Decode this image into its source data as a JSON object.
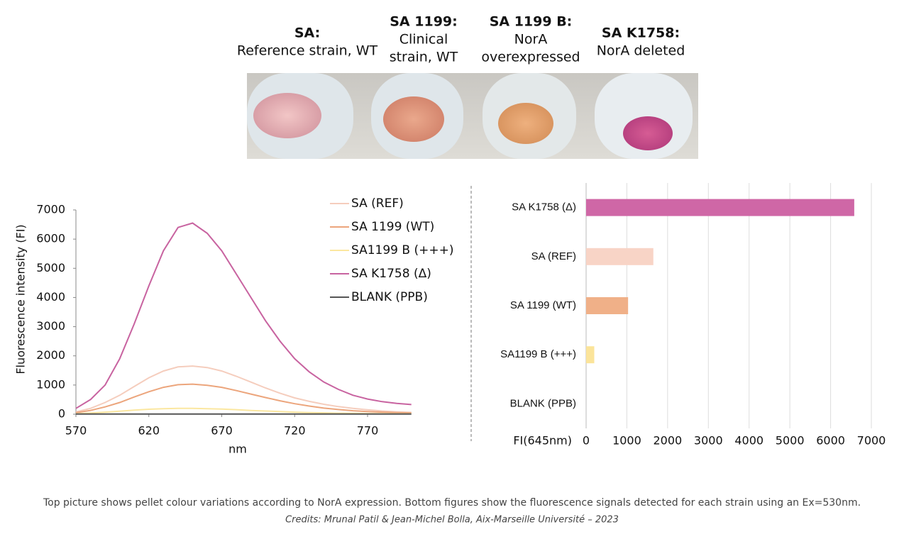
{
  "photo_labels": [
    {
      "name": "SA:",
      "description": [
        "Reference strain, WT"
      ]
    },
    {
      "name": "SA 1199:",
      "description": [
        "Clinical",
        "strain, WT"
      ]
    },
    {
      "name": "SA 1199 B:",
      "description": [
        "NorA",
        "overexpressed"
      ]
    },
    {
      "name": "SA K1758:",
      "description": [
        "NorA deleted"
      ]
    }
  ],
  "chart_data": [
    {
      "type": "line",
      "y_label": "Fluorescence intensity (FI)",
      "x_label": "nm",
      "x": [
        570,
        580,
        590,
        600,
        610,
        620,
        630,
        640,
        650,
        660,
        670,
        680,
        690,
        700,
        710,
        720,
        730,
        740,
        750,
        760,
        770,
        780,
        790,
        800
      ],
      "xlim": [
        570,
        800
      ],
      "xticks": [
        570,
        620,
        670,
        720,
        770
      ],
      "ylim": [
        0,
        7000
      ],
      "yticks": [
        0,
        1000,
        2000,
        3000,
        4000,
        5000,
        6000,
        7000
      ],
      "legend": "top-right",
      "series": [
        {
          "name": "SA (REF)",
          "color": "#f5cdbd",
          "values": [
            80,
            200,
            400,
            650,
            950,
            1250,
            1480,
            1620,
            1650,
            1600,
            1480,
            1300,
            1100,
            900,
            720,
            560,
            440,
            340,
            260,
            200,
            150,
            110,
            80,
            60
          ]
        },
        {
          "name": "SA 1199 (WT)",
          "color": "#eca57c",
          "values": [
            50,
            130,
            250,
            400,
            590,
            770,
            920,
            1010,
            1030,
            990,
            920,
            810,
            690,
            570,
            460,
            360,
            280,
            210,
            160,
            120,
            90,
            70,
            55,
            45
          ]
        },
        {
          "name": "SA1199 B (+++)",
          "color": "#fbe7a0",
          "values": [
            15,
            40,
            70,
            105,
            140,
            170,
            190,
            200,
            200,
            190,
            175,
            155,
            130,
            110,
            90,
            70,
            55,
            45,
            35,
            28,
            22,
            18,
            15,
            12
          ]
        },
        {
          "name": "SA K1758 (Δ)",
          "color": "#c863a0",
          "values": [
            200,
            500,
            1000,
            1900,
            3100,
            4400,
            5600,
            6400,
            6550,
            6200,
            5600,
            4800,
            4000,
            3200,
            2500,
            1900,
            1450,
            1100,
            850,
            650,
            520,
            430,
            370,
            330
          ]
        },
        {
          "name": "BLANK (PPB)",
          "color": "#555555",
          "values": [
            5,
            5,
            5,
            5,
            5,
            5,
            5,
            5,
            5,
            5,
            5,
            5,
            5,
            5,
            5,
            5,
            5,
            5,
            5,
            5,
            5,
            5,
            5,
            5
          ]
        }
      ]
    },
    {
      "type": "hbar",
      "x_label": "FI(645nm)",
      "categories": [
        "SA K1758 (Δ)",
        "SA (REF)",
        "SA 1199 (WT)",
        "SA1199 B (+++)",
        "BLANK (PPB)"
      ],
      "values": [
        6580,
        1650,
        1030,
        200,
        0
      ],
      "colors": [
        "#cf67a6",
        "#f8d4c6",
        "#f0b088",
        "#fbe49a",
        "#555555"
      ],
      "xlim": [
        0,
        7000
      ],
      "xticks": [
        0,
        1000,
        2000,
        3000,
        4000,
        5000,
        6000,
        7000
      ],
      "grid": true
    }
  ],
  "caption": "Top picture shows pellet colour variations according to NorA expression. Bottom figures show the fluorescence signals detected for each strain using an Ex=530nm.",
  "credits": "Credits: Mrunal Patil & Jean-Michel Bolla, Aix-Marseille Université – 2023"
}
